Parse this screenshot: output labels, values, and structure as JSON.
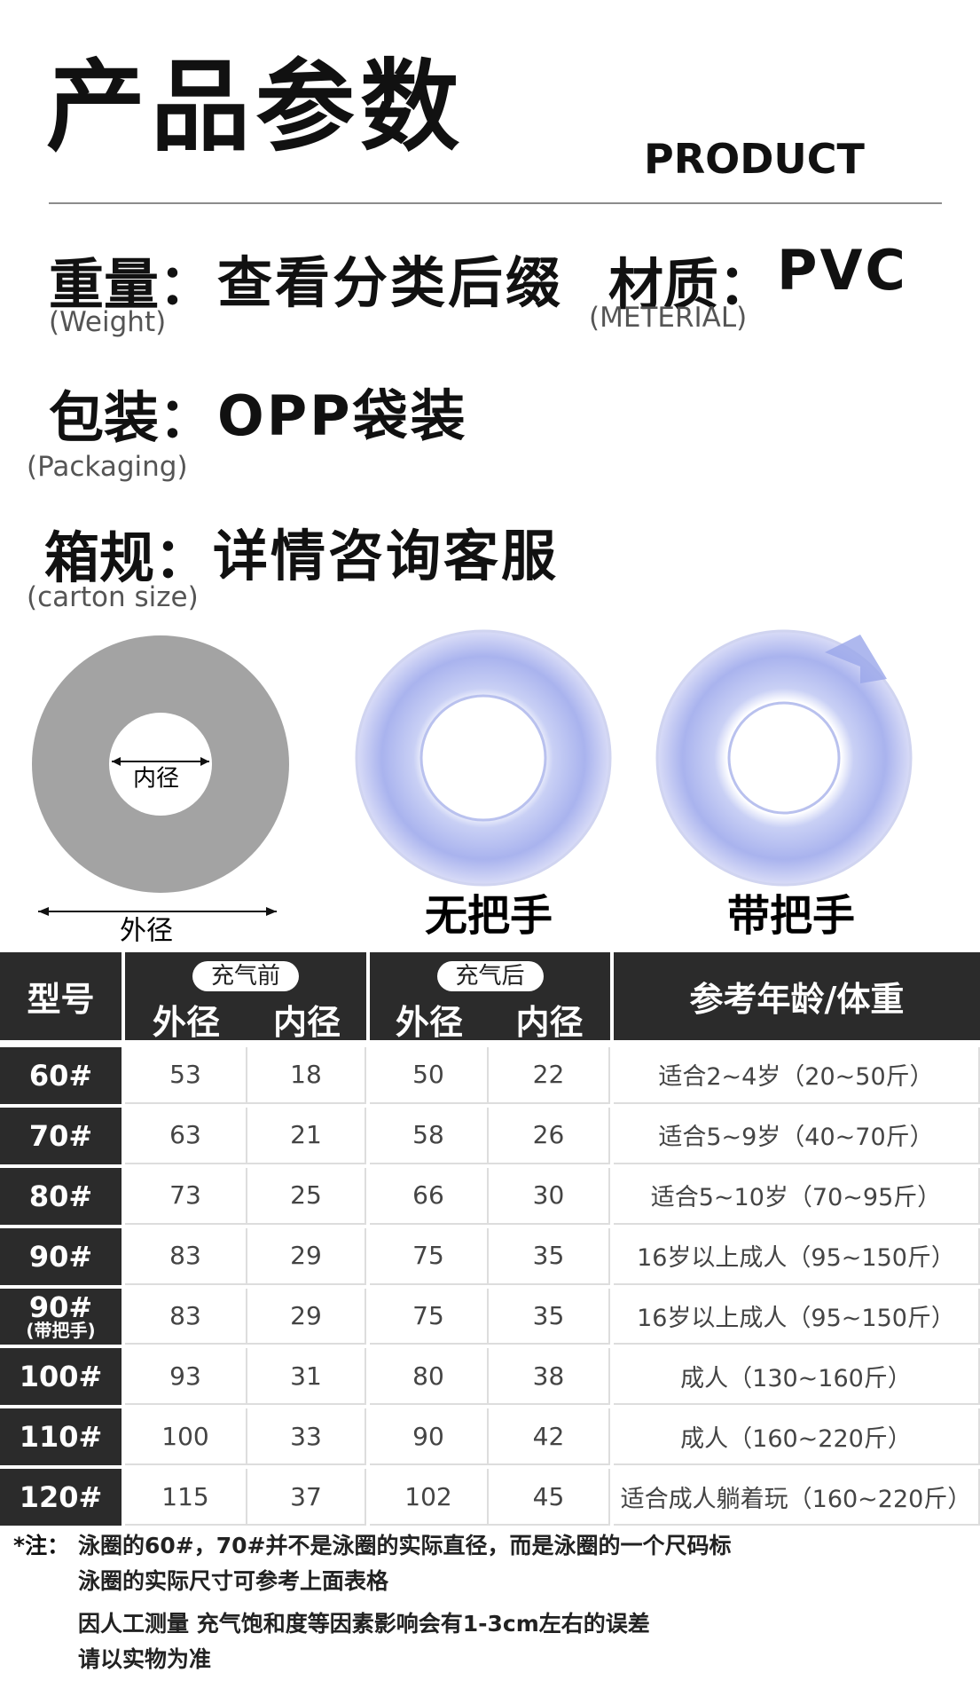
{
  "header": {
    "title": "产品参数",
    "subtitle": "PRODUCT"
  },
  "specs": [
    {
      "label": "重量：",
      "value": "查看分类后缀",
      "note": "(Weight)"
    },
    {
      "label": "材质：",
      "value": "PVC",
      "note": "(METERIAL)"
    },
    {
      "label": "包装：",
      "value": "OPP袋装",
      "note": "(Packaging)"
    },
    {
      "label": "箱规：",
      "value": "详情咨询客服",
      "note": "(carton size)"
    }
  ],
  "diagram": {
    "inner": "内径",
    "outer": "外径"
  },
  "products": [
    {
      "caption": "无把手"
    },
    {
      "caption": "带把手"
    }
  ],
  "table": {
    "header": {
      "model": "型号",
      "groups": [
        {
          "title": "充气前",
          "columns": [
            "外径",
            "内径"
          ]
        },
        {
          "title": "充气后",
          "columns": [
            "外径",
            "内径"
          ]
        }
      ],
      "age": "参考年龄/体重"
    },
    "rows": [
      {
        "model": "60#",
        "cells": [
          "53",
          "18",
          "50",
          "22",
          "适合2~4岁（20~50斤）"
        ]
      },
      {
        "model": "70#",
        "cells": [
          "63",
          "21",
          "58",
          "26",
          "适合5~9岁（40~70斤）"
        ]
      },
      {
        "model": "80#",
        "cells": [
          "73",
          "25",
          "66",
          "30",
          "适合5~10岁（70~95斤）"
        ]
      },
      {
        "model": "90#",
        "cells": [
          "83",
          "29",
          "75",
          "35",
          "16岁以上成人（95~150斤）"
        ]
      },
      {
        "model": "90#",
        "model_note": "(带把手)",
        "cells": [
          "83",
          "29",
          "75",
          "35",
          "16岁以上成人（95~150斤）"
        ]
      },
      {
        "model": "100#",
        "cells": [
          "93",
          "31",
          "80",
          "38",
          "成人（130~160斤）"
        ]
      },
      {
        "model": "110#",
        "cells": [
          "100",
          "33",
          "90",
          "42",
          "成人（160~220斤）"
        ]
      },
      {
        "model": "120#",
        "cells": [
          "115",
          "37",
          "102",
          "45",
          "适合成人躺着玩（160~220斤）"
        ]
      }
    ]
  },
  "notes": {
    "prefix": "*注：",
    "lines": [
      "泳圈的60#，70#并不是泳圈的实际直径，而是泳圈的一个尺码标",
      "泳圈的实际尺寸可参考上面表格",
      "因人工测量 充气饱和度等因素影响会有1-3cm左右的误差",
      "请以实物为准"
    ]
  }
}
